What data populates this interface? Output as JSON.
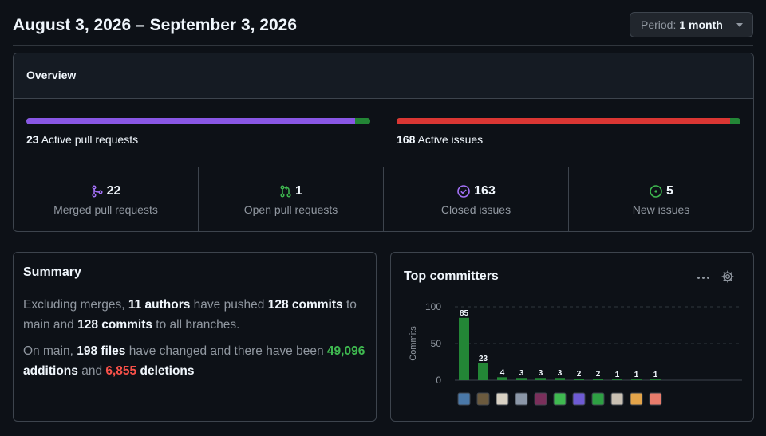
{
  "header": {
    "date_range": "August 3, 2026 – September 3, 2026",
    "period_label": "Period:",
    "period_value": "1 month"
  },
  "overview": {
    "title": "Overview",
    "pull_requests": {
      "count": "23",
      "label": "Active pull requests",
      "merged_fraction": 0.957,
      "color_merged": "#8957e5",
      "color_open": "#238636"
    },
    "issues": {
      "count": "168",
      "label": "Active issues",
      "closed_fraction": 0.97,
      "color_closed": "#da3633",
      "color_new": "#238636"
    },
    "stats": [
      {
        "icon": "git-merge-icon",
        "value": "22",
        "label": "Merged pull requests",
        "color": "#a371f7"
      },
      {
        "icon": "git-pull-request-icon",
        "value": "1",
        "label": "Open pull requests",
        "color": "#3fb950"
      },
      {
        "icon": "issue-closed-icon",
        "value": "163",
        "label": "Closed issues",
        "color": "#a371f7"
      },
      {
        "icon": "issue-opened-icon",
        "value": "5",
        "label": "New issues",
        "color": "#3fb950"
      }
    ]
  },
  "summary": {
    "title": "Summary",
    "line1": {
      "t1": "Excluding merges, ",
      "authors": "11 authors",
      "t2": " have pushed ",
      "commits": "128 commits",
      "t3": " to main and ",
      "commits_all": "128 commits",
      "t4": " to all branches."
    },
    "line2": {
      "t1": "On main, ",
      "files": "198 files",
      "t2": " have changed and there have been ",
      "additions_num": "49,096",
      "additions_word": " additions",
      "t3": " and ",
      "deletions_num": "6,855",
      "deletions_word": " deletions"
    }
  },
  "committers": {
    "title": "Top committers",
    "avatar_colors": [
      "#4a78a8",
      "#6b5a3e",
      "#d9d2c4",
      "#8b97a8",
      "#7a2f5b",
      "#3fb950",
      "#6e5bd4",
      "#2ea043",
      "#c9c0b3",
      "#e3a44a",
      "#e87c6c"
    ]
  },
  "chart_data": {
    "type": "bar",
    "ylabel": "Commits",
    "ylim": [
      0,
      100
    ],
    "yticks": [
      0,
      50,
      100
    ],
    "values": [
      85,
      23,
      4,
      3,
      3,
      3,
      2,
      2,
      1,
      1,
      1
    ],
    "value_labels": [
      "85",
      "23",
      "4",
      "3",
      "3",
      "3",
      "2",
      "2",
      "1",
      "1",
      "1"
    ],
    "bar_color": "#238636",
    "grid": true
  }
}
